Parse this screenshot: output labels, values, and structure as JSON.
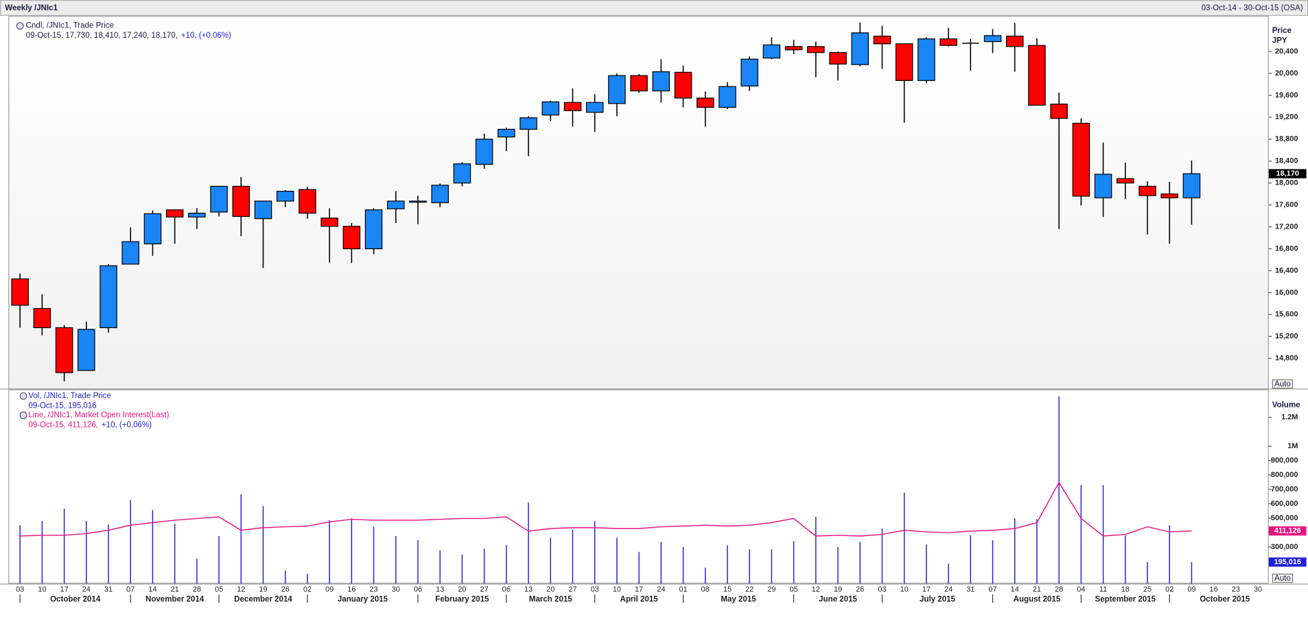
{
  "chart_data": [
    {
      "type": "candlestick",
      "title": "Weekly /JNIc1",
      "date_range": "03-Oct-14 - 30-Oct-15 (OSA)",
      "legend": {
        "name": "Cndl, /JNIc1, Trade Price",
        "values": "09-Oct-15, 17,730, 18,410, 17,240, 18,170,",
        "change": "+10, (+0.06%)"
      },
      "y_label": [
        "Price",
        "JPY"
      ],
      "scale_button": "Auto",
      "categories": [
        "03",
        "10",
        "17",
        "24",
        "31",
        "07",
        "14",
        "21",
        "28",
        "05",
        "12",
        "19",
        "26",
        "02",
        "09",
        "16",
        "23",
        "30",
        "06",
        "13",
        "20",
        "27",
        "06",
        "13",
        "20",
        "27",
        "03",
        "10",
        "17",
        "24",
        "01",
        "08",
        "15",
        "22",
        "29",
        "05",
        "12",
        "19",
        "26",
        "03",
        "10",
        "17",
        "24",
        "31",
        "07",
        "14",
        "21",
        "28",
        "04",
        "11",
        "18",
        "25",
        "02",
        "09",
        "16",
        "23",
        "30"
      ],
      "month_labels": [
        "October 2014",
        "November 2014",
        "December 2014",
        "January 2015",
        "February 2015",
        "March 2015",
        "April 2015",
        "May 2015",
        "June 2015",
        "July 2015",
        "August 2015",
        "September 2015",
        "October 2015"
      ],
      "open": [
        16250,
        15710,
        15360,
        14580,
        15360,
        16520,
        16890,
        17510,
        17380,
        17470,
        17940,
        17350,
        17670,
        17880,
        17360,
        17210,
        16800,
        17530,
        17650,
        17640,
        18000,
        18340,
        18840,
        18980,
        19240,
        19470,
        19290,
        19450,
        19960,
        19680,
        20020,
        19550,
        19380,
        19770,
        20280,
        20490,
        20490,
        20380,
        20160,
        20680,
        20540,
        19870,
        20630,
        20550,
        20580,
        20680,
        20510,
        19440,
        19090,
        17730,
        18080,
        17940,
        17800,
        17730,
        null,
        null,
        null
      ],
      "high": [
        16350,
        15970,
        15410,
        15470,
        16520,
        17190,
        17500,
        17510,
        17540,
        17940,
        18110,
        17670,
        17870,
        17930,
        17540,
        17270,
        17540,
        17850,
        17770,
        17990,
        18380,
        18900,
        19010,
        19220,
        19500,
        19730,
        19620,
        20000,
        19990,
        20260,
        20140,
        19670,
        19840,
        20310,
        20660,
        20610,
        20580,
        20400,
        20930,
        20870,
        20540,
        20660,
        20830,
        20630,
        20810,
        20920,
        20640,
        19650,
        19180,
        18740,
        18370,
        18030,
        18020,
        18410,
        null,
        null,
        null
      ],
      "low": [
        15360,
        15220,
        14380,
        14580,
        15270,
        16520,
        16670,
        16890,
        17160,
        17390,
        17030,
        16450,
        17560,
        17350,
        16550,
        16540,
        16700,
        17270,
        17250,
        17560,
        17940,
        18260,
        18580,
        18490,
        19130,
        19030,
        18930,
        19220,
        19650,
        19470,
        19380,
        19030,
        19350,
        19680,
        20260,
        20350,
        19930,
        19870,
        20130,
        20080,
        19100,
        19820,
        20490,
        20050,
        20370,
        20030,
        19410,
        17160,
        17590,
        17380,
        17710,
        17060,
        16890,
        17240,
        null,
        null,
        null
      ],
      "close": [
        15770,
        15360,
        14540,
        15330,
        16490,
        16930,
        17440,
        17380,
        17450,
        17940,
        17390,
        17670,
        17850,
        17450,
        17210,
        16800,
        17510,
        17670,
        17670,
        17960,
        18350,
        18800,
        18980,
        19190,
        19480,
        19320,
        19470,
        19960,
        19680,
        20030,
        19550,
        19380,
        19760,
        20260,
        20520,
        20430,
        20380,
        20170,
        20740,
        20540,
        19870,
        20630,
        20510,
        20550,
        20690,
        20490,
        19420,
        19180,
        17760,
        18160,
        18000,
        17770,
        17730,
        18170,
        null,
        null,
        null
      ],
      "up_color": "#1a86f5",
      "down_color": "#ff0000",
      "last_value_label": "18,170",
      "ylim": [
        14250,
        21050
      ],
      "yticks": [
        {
          "value": 14800,
          "label": "14,800"
        },
        {
          "value": 15200,
          "label": "15,200"
        },
        {
          "value": 15600,
          "label": "15,600"
        },
        {
          "value": 16000,
          "label": "16,000"
        },
        {
          "value": 16400,
          "label": "16,400"
        },
        {
          "value": 16800,
          "label": "16,800"
        },
        {
          "value": 17200,
          "label": "17,200"
        },
        {
          "value": 17600,
          "label": "17,600"
        },
        {
          "value": 18000,
          "label": "18,000"
        },
        {
          "value": 18400,
          "label": "18,400"
        },
        {
          "value": 18800,
          "label": "18,800"
        },
        {
          "value": 19200,
          "label": "19,200"
        },
        {
          "value": 19600,
          "label": "19,600"
        },
        {
          "value": 20000,
          "label": "20,000"
        },
        {
          "value": 20400,
          "label": "20,400"
        }
      ]
    },
    {
      "type": "volume",
      "y_label": "Volume",
      "scale_button": "Auto",
      "series": [
        {
          "name": "Vol, /JNIc1, Trade Price",
          "legend_values": "09-Oct-15, 195,016",
          "kind": "bar",
          "color": "#1f1fd6",
          "values": [
            451000,
            480000,
            567000,
            480000,
            457000,
            626000,
            556000,
            463000,
            219000,
            376000,
            666000,
            585000,
            137000,
            114000,
            486000,
            498000,
            440000,
            376000,
            347000,
            277000,
            248000,
            288000,
            312000,
            608000,
            364000,
            422000,
            480000,
            364000,
            265000,
            335000,
            300000,
            155000,
            312000,
            283000,
            283000,
            341000,
            509000,
            300000,
            335000,
            428000,
            678000,
            317000,
            184000,
            381000,
            347000,
            498000,
            492000,
            1347000,
            730000,
            730000,
            381000,
            195000,
            451000,
            195016,
            null,
            null,
            null
          ],
          "last_value_label": "195,016"
        },
        {
          "name": "Line, /JNIc1, Market Open Interest(Last)",
          "legend_values": "09-Oct-15, 411,126,",
          "legend_change": "+10, (+0.06%)",
          "kind": "line",
          "color": "#e8137f",
          "values": [
            376000,
            381000,
            381000,
            393000,
            416000,
            451000,
            469000,
            486000,
            498000,
            509000,
            416000,
            434000,
            440000,
            445000,
            474000,
            492000,
            486000,
            486000,
            486000,
            492000,
            498000,
            498000,
            509000,
            410000,
            428000,
            434000,
            434000,
            428000,
            428000,
            440000,
            445000,
            451000,
            445000,
            451000,
            469000,
            498000,
            376000,
            381000,
            376000,
            387000,
            416000,
            405000,
            399000,
            410000,
            416000,
            428000,
            469000,
            748000,
            498000,
            376000,
            387000,
            440000,
            405000,
            411126,
            null,
            null,
            null
          ],
          "last_value_label": "411,126"
        }
      ],
      "ylim": [
        45000,
        1395000
      ],
      "yticks": [
        {
          "value": 300000,
          "label": "300,000"
        },
        {
          "value": 500000,
          "label": "500,000"
        },
        {
          "value": 600000,
          "label": "600,000"
        },
        {
          "value": 700000,
          "label": "700,000"
        },
        {
          "value": 800000,
          "label": "800,000"
        },
        {
          "value": 900000,
          "label": "900,000"
        },
        {
          "value": 1000000,
          "label": "1M"
        },
        {
          "value": 1200000,
          "label": "1.2M"
        }
      ]
    }
  ]
}
